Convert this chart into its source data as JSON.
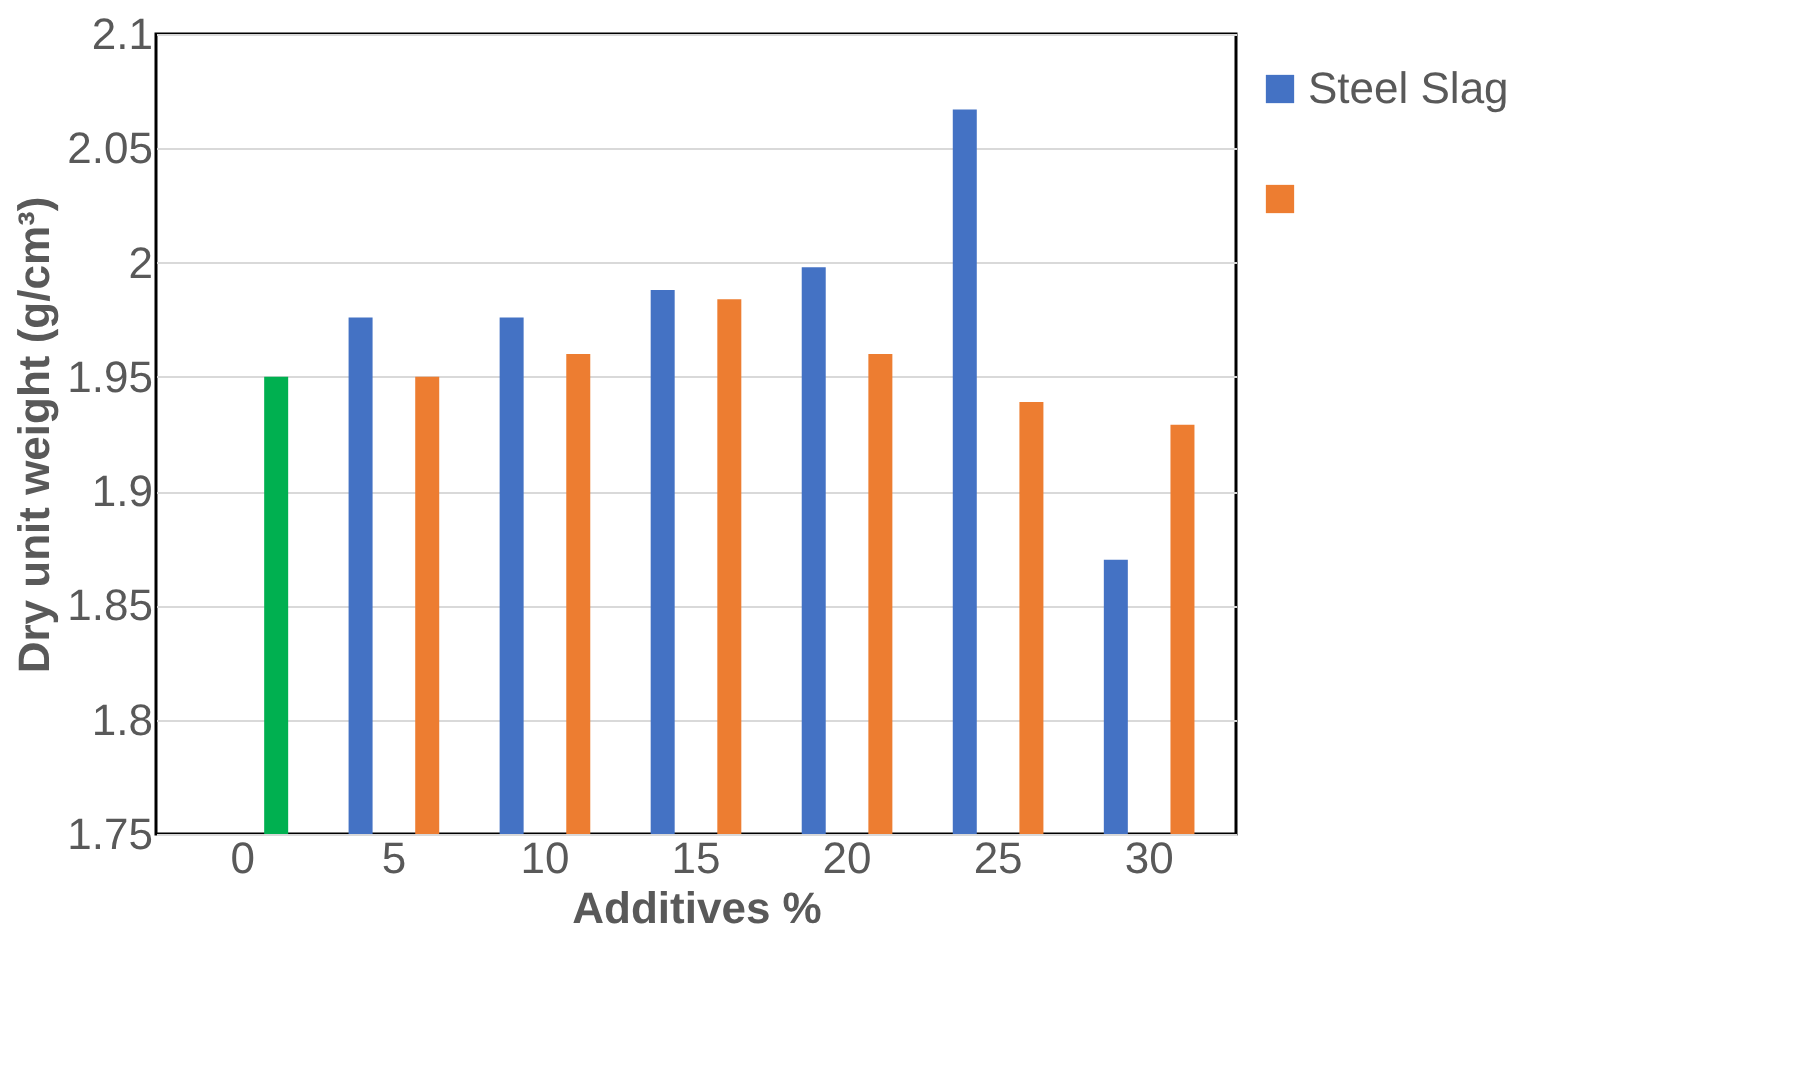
{
  "chart_data": {
    "type": "bar",
    "xlabel": "Additives %",
    "ylabel": "Dry unit weight (g/cm³)",
    "categories": [
      "0",
      "5",
      "10",
      "15",
      "20",
      "25",
      "30"
    ],
    "series": [
      {
        "name": "Steel Slag",
        "color": "#4472c4",
        "values": [
          null,
          1.976,
          1.976,
          1.988,
          1.998,
          2.067,
          1.87
        ]
      },
      {
        "color": "#ed7d31",
        "colors": [
          "#00b050",
          "#ed7d31",
          "#ed7d31",
          "#ed7d31",
          "#ed7d31",
          "#ed7d31",
          "#ed7d31"
        ],
        "values": [
          1.95,
          1.95,
          1.96,
          1.984,
          1.96,
          1.939,
          1.929
        ]
      }
    ],
    "ylim": [
      1.75,
      2.1
    ],
    "yticks": [
      1.75,
      1.8,
      1.85,
      1.9,
      1.95,
      2,
      2.05,
      2.1
    ],
    "grid": "y",
    "legend": "right"
  }
}
